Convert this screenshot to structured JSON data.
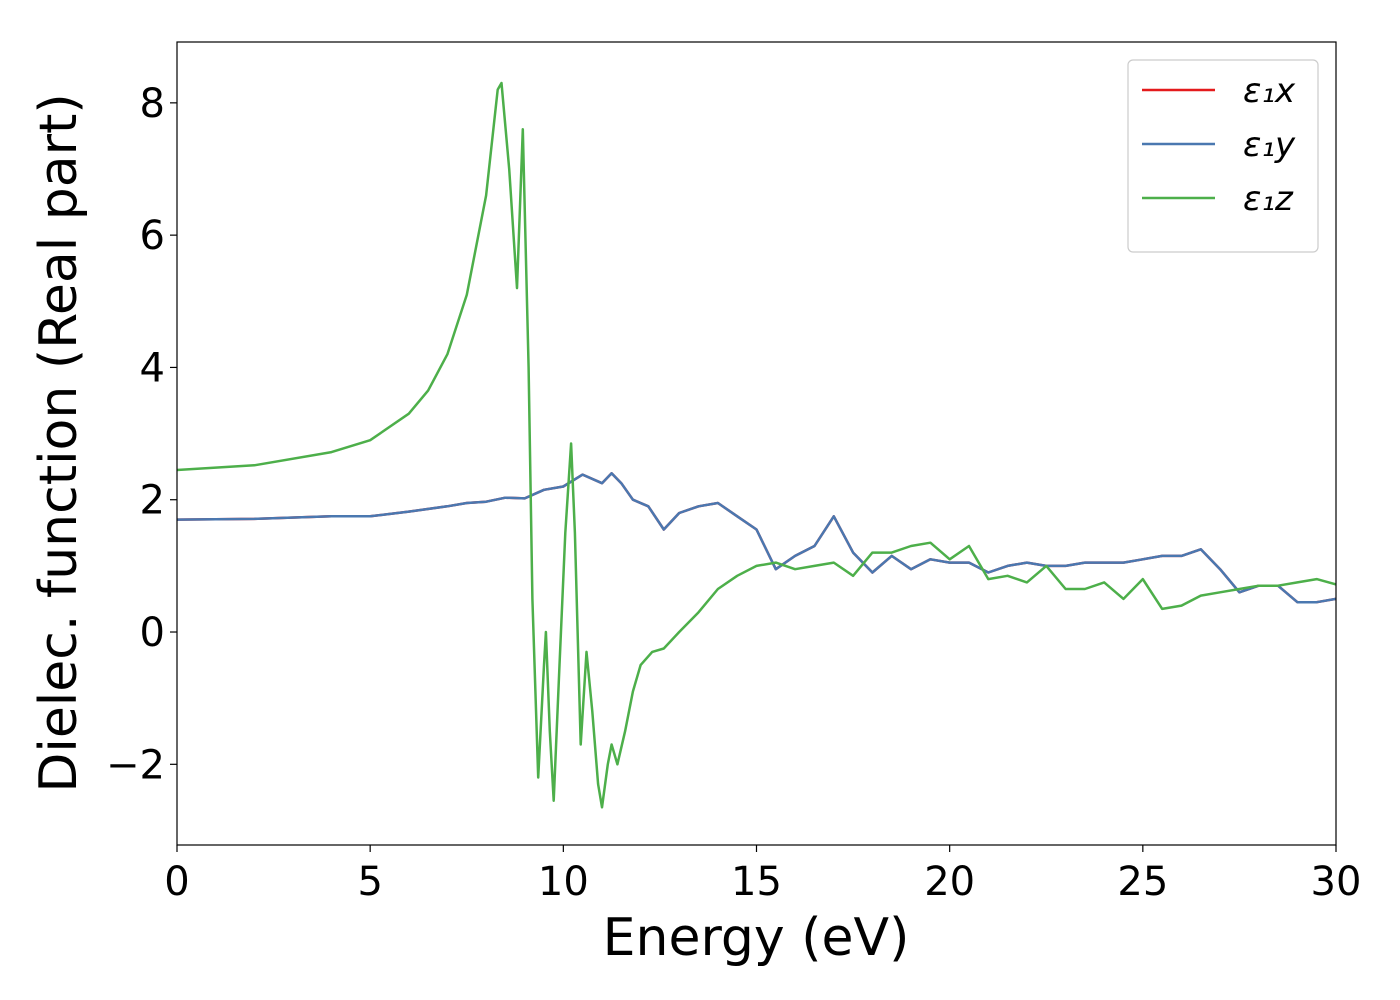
{
  "chart_data": {
    "type": "line",
    "xlabel": "Energy (eV)",
    "ylabel": "Dielec. function (Real part)",
    "xlim": [
      0,
      30
    ],
    "ylim": [
      -3.22,
      8.92
    ],
    "xticks": [
      0,
      5,
      10,
      15,
      20,
      25,
      30
    ],
    "yticks": [
      {
        "value": -2,
        "label": "−2"
      },
      0,
      2,
      4,
      6,
      8
    ],
    "grid": false,
    "legend": "upper right",
    "series": [
      {
        "name": "ε₁x",
        "color": "#e41a1c",
        "x": [
          0,
          2,
          4,
          5,
          6,
          7,
          7.5,
          8,
          8.5,
          9,
          9.5,
          10,
          10.5,
          11,
          11.25,
          11.5,
          11.8,
          12.2,
          12.6,
          13,
          13.5,
          14,
          14.5,
          15,
          15.5,
          16,
          16.5,
          17,
          17.5,
          18,
          18.5,
          19,
          19.5,
          20,
          20.5,
          21,
          21.5,
          22,
          22.5,
          23,
          23.5,
          24,
          24.5,
          25,
          25.5,
          26,
          26.5,
          27,
          27.5,
          28,
          28.5,
          29,
          29.5,
          30
        ],
        "values": [
          1.7,
          1.71,
          1.75,
          1.75,
          1.82,
          1.9,
          1.95,
          1.97,
          2.03,
          2.02,
          2.15,
          2.2,
          2.38,
          2.25,
          2.4,
          2.25,
          2.0,
          1.9,
          1.55,
          1.8,
          1.9,
          1.95,
          1.75,
          1.55,
          0.95,
          1.15,
          1.3,
          1.75,
          1.2,
          0.9,
          1.15,
          0.95,
          1.1,
          1.05,
          1.05,
          0.9,
          1.0,
          1.05,
          1.0,
          1.0,
          1.05,
          1.05,
          1.05,
          1.1,
          1.15,
          1.15,
          1.25,
          0.95,
          0.6,
          0.7,
          0.7,
          0.45,
          0.45,
          0.5
        ]
      },
      {
        "name": "ε₁y",
        "color": "#4a78b0",
        "x": [
          0,
          2,
          4,
          5,
          6,
          7,
          7.5,
          8,
          8.5,
          9,
          9.5,
          10,
          10.5,
          11,
          11.25,
          11.5,
          11.8,
          12.2,
          12.6,
          13,
          13.5,
          14,
          14.5,
          15,
          15.5,
          16,
          16.5,
          17,
          17.5,
          18,
          18.5,
          19,
          19.5,
          20,
          20.5,
          21,
          21.5,
          22,
          22.5,
          23,
          23.5,
          24,
          24.5,
          25,
          25.5,
          26,
          26.5,
          27,
          27.5,
          28,
          28.5,
          29,
          29.5,
          30
        ],
        "values": [
          1.7,
          1.71,
          1.75,
          1.75,
          1.82,
          1.9,
          1.95,
          1.97,
          2.03,
          2.02,
          2.15,
          2.2,
          2.38,
          2.25,
          2.4,
          2.25,
          2.0,
          1.9,
          1.55,
          1.8,
          1.9,
          1.95,
          1.75,
          1.55,
          0.95,
          1.15,
          1.3,
          1.75,
          1.2,
          0.9,
          1.15,
          0.95,
          1.1,
          1.05,
          1.05,
          0.9,
          1.0,
          1.05,
          1.0,
          1.0,
          1.05,
          1.05,
          1.05,
          1.1,
          1.15,
          1.15,
          1.25,
          0.95,
          0.6,
          0.7,
          0.7,
          0.45,
          0.45,
          0.5
        ]
      },
      {
        "name": "ε₁z",
        "color": "#4daf4a",
        "x": [
          0,
          2,
          4,
          5,
          6,
          6.5,
          7,
          7.5,
          8,
          8.3,
          8.4,
          8.6,
          8.8,
          8.95,
          9.1,
          9.2,
          9.35,
          9.5,
          9.55,
          9.65,
          9.75,
          9.9,
          10.05,
          10.2,
          10.3,
          10.45,
          10.6,
          10.75,
          10.9,
          11.0,
          11.15,
          11.25,
          11.4,
          11.6,
          11.8,
          12.0,
          12.3,
          12.6,
          13.0,
          13.5,
          14.0,
          14.5,
          15.0,
          15.5,
          16.0,
          16.5,
          17.0,
          17.5,
          18.0,
          18.5,
          19.0,
          19.5,
          20.0,
          20.5,
          21.0,
          21.5,
          22.0,
          22.5,
          23.0,
          23.5,
          24.0,
          24.5,
          25.0,
          25.5,
          26.0,
          26.5,
          27.0,
          27.5,
          28.0,
          28.5,
          29.0,
          29.5,
          30.0
        ],
        "values": [
          2.45,
          2.52,
          2.72,
          2.9,
          3.3,
          3.65,
          4.2,
          5.1,
          6.6,
          8.2,
          8.3,
          7.0,
          5.2,
          7.6,
          4.0,
          0.5,
          -2.2,
          -0.5,
          0.0,
          -1.5,
          -2.55,
          -0.5,
          1.5,
          2.85,
          1.5,
          -1.7,
          -0.3,
          -1.2,
          -2.3,
          -2.65,
          -2.0,
          -1.7,
          -2.0,
          -1.5,
          -0.9,
          -0.5,
          -0.3,
          -0.25,
          0.0,
          0.3,
          0.65,
          0.85,
          1.0,
          1.05,
          0.95,
          1.0,
          1.05,
          0.85,
          1.2,
          1.2,
          1.3,
          1.35,
          1.1,
          1.3,
          0.8,
          0.85,
          0.75,
          1.0,
          0.65,
          0.65,
          0.75,
          0.5,
          0.8,
          0.35,
          0.4,
          0.55,
          0.6,
          0.65,
          0.7,
          0.7,
          0.75,
          0.8,
          0.72
        ]
      }
    ]
  }
}
